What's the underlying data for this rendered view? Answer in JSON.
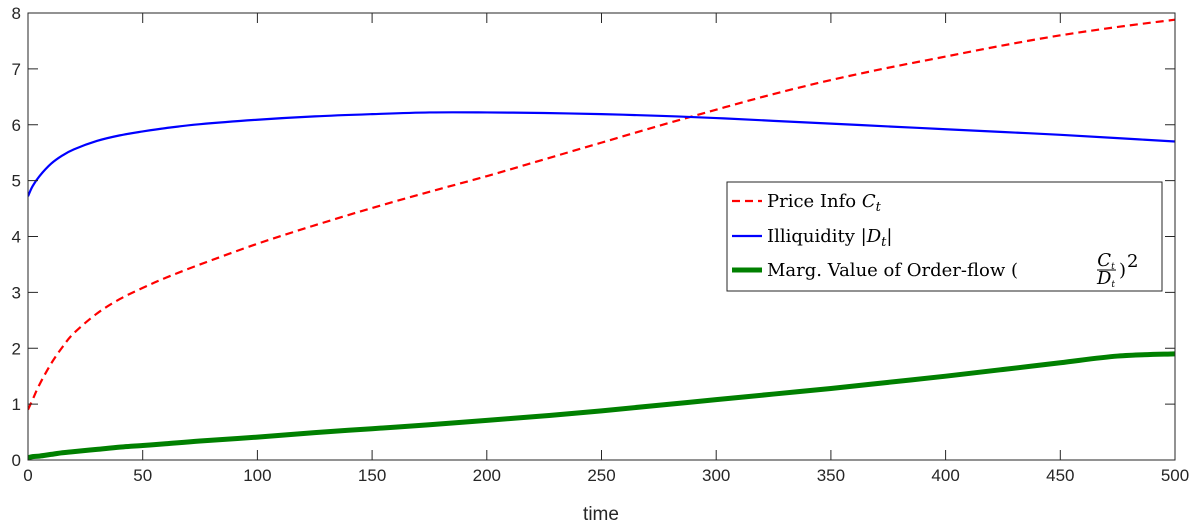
{
  "chart_data": {
    "type": "line",
    "title": "",
    "xlabel": "time",
    "ylabel": "",
    "xlim": [
      0,
      500
    ],
    "ylim": [
      0,
      8
    ],
    "x_ticks": [
      "0",
      "50",
      "100",
      "150",
      "200",
      "250",
      "300",
      "350",
      "400",
      "450",
      "500"
    ],
    "y_ticks": [
      "0",
      "1",
      "2",
      "3",
      "4",
      "5",
      "6",
      "7",
      "8"
    ],
    "grid": false,
    "legend_position": "right",
    "x": [
      0,
      2,
      5,
      10,
      15,
      20,
      30,
      40,
      50,
      60,
      75,
      100,
      125,
      150,
      175,
      200,
      225,
      250,
      275,
      300,
      325,
      350,
      375,
      400,
      425,
      450,
      475,
      500
    ],
    "series": [
      {
        "name": "Price Info C_t",
        "color": "#ff0000",
        "style": "dashed",
        "width": 2.2,
        "values": [
          0.9,
          1.08,
          1.35,
          1.72,
          2.02,
          2.27,
          2.62,
          2.88,
          3.08,
          3.26,
          3.5,
          3.87,
          4.2,
          4.51,
          4.8,
          5.08,
          5.38,
          5.68,
          5.98,
          6.27,
          6.55,
          6.8,
          7.02,
          7.22,
          7.42,
          7.6,
          7.75,
          7.88
        ]
      },
      {
        "name": "Illiquidity |D_t|",
        "color": "#0000ff",
        "style": "solid",
        "width": 2.2,
        "values": [
          4.72,
          4.9,
          5.08,
          5.3,
          5.45,
          5.56,
          5.71,
          5.81,
          5.88,
          5.94,
          6.01,
          6.09,
          6.15,
          6.19,
          6.22,
          6.22,
          6.21,
          6.19,
          6.16,
          6.12,
          6.07,
          6.02,
          5.97,
          5.92,
          5.87,
          5.82,
          5.76,
          5.7
        ]
      },
      {
        "name": "Marg. Value of Order-flow (C_t/D_t)^2",
        "color": "#008000",
        "style": "solid",
        "width": 5,
        "values": [
          0.04,
          0.06,
          0.07,
          0.1,
          0.13,
          0.15,
          0.19,
          0.23,
          0.26,
          0.29,
          0.34,
          0.41,
          0.49,
          0.56,
          0.63,
          0.71,
          0.79,
          0.88,
          0.98,
          1.08,
          1.18,
          1.28,
          1.39,
          1.5,
          1.62,
          1.74,
          1.86,
          1.9
        ]
      }
    ]
  }
}
